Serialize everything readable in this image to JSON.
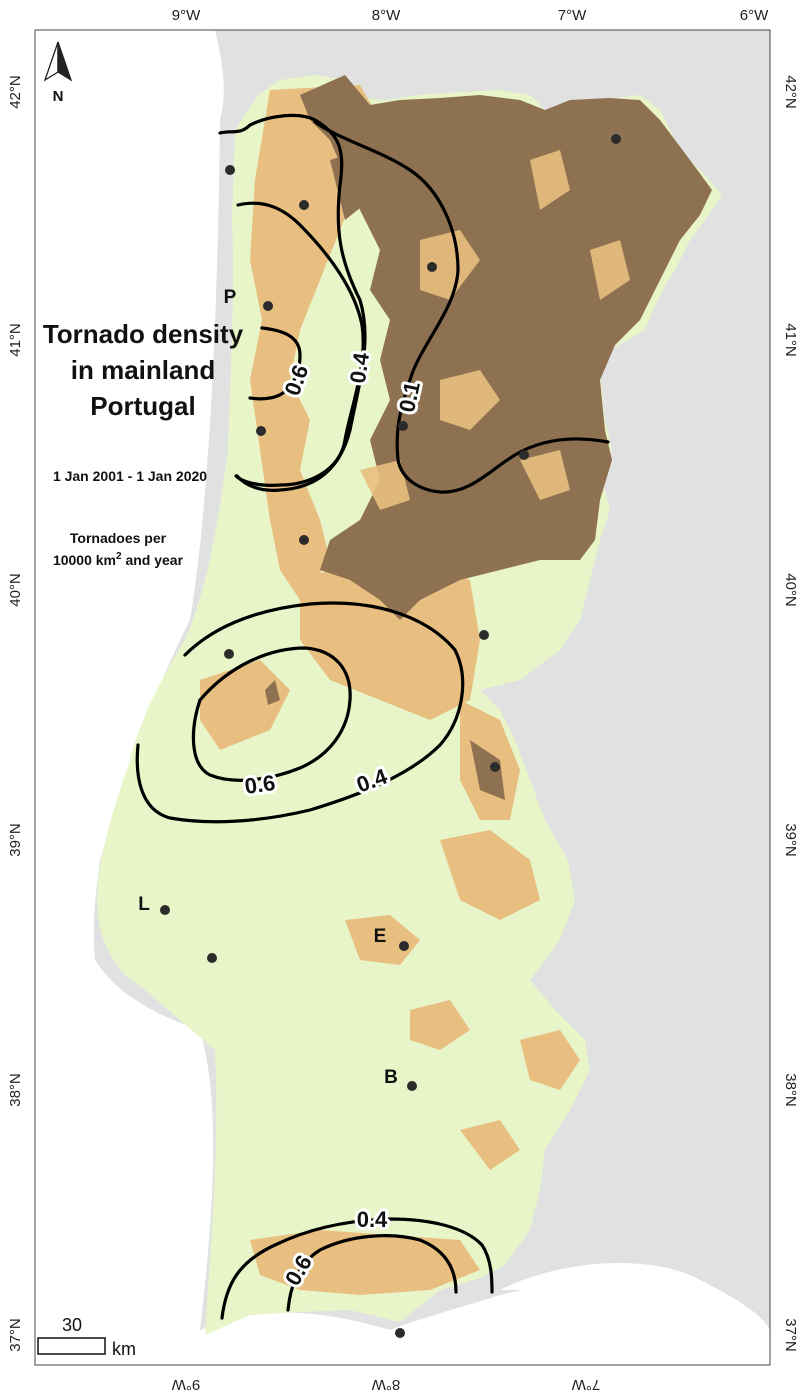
{
  "title": [
    "Tornado density",
    "in mainland",
    "Portugal"
  ],
  "period": "1 Jan 2001 - 1 Jan 2020",
  "units_line1": "Tornadoes per",
  "units_line2_pre": "10000 km",
  "units_line2_sup": "2",
  "units_line2_post": " and year",
  "north_label": "N",
  "lon_ticks": [
    "9°W",
    "8°W",
    "7°W",
    "6°W"
  ],
  "lat_ticks": [
    "42°N",
    "41°N",
    "40°N",
    "39°N",
    "38°N",
    "37°N"
  ],
  "city_labels": {
    "P": "P",
    "L": "L",
    "E": "E",
    "B": "B"
  },
  "contour_labels": {
    "north_06": "0.6",
    "north_04": "0.4",
    "north_01": "0.1",
    "center_06": "0.6",
    "center_04": "0.4",
    "south_04": "0.4",
    "south_06": "0.6"
  },
  "scale": {
    "value": "30",
    "unit": "km"
  },
  "colors": {
    "sea": "#ffffff",
    "spain": "#e1e1e1",
    "lowland": "#e8f5c8",
    "midland": "#e8bf80",
    "highland": "#8e7150",
    "contour": "#000000",
    "station": "#2b2b2b"
  }
}
